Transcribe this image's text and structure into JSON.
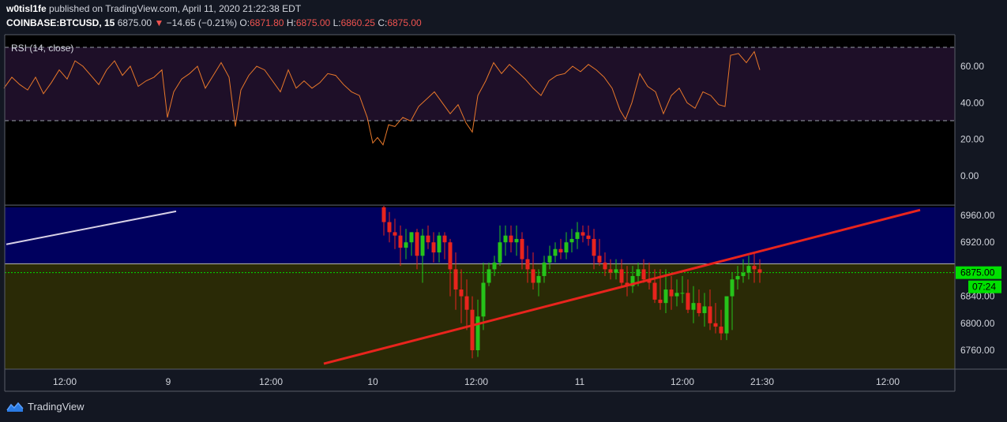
{
  "header": {
    "publisher": "w0tisl1fe",
    "published_text": "published on TradingView.com, April 11, 2020 21:22:38 EDT",
    "symbol": "COINBASE:BTCUSD, 15",
    "last": "6875.00",
    "change_arrow": "▼",
    "change": "−14.65 (−0.21%)",
    "o_label": "O:",
    "o_value": "6871.80",
    "h_label": "H:",
    "h_value": "6875.00",
    "l_label": "L:",
    "l_value": "6860.25",
    "c_label": "C:",
    "c_value": "6875.00"
  },
  "footer": {
    "brand": "TradingView",
    "logo_icon": "tradingview-logo-icon"
  },
  "colors": {
    "background": "#131722",
    "rsi_band": "#1e0f28",
    "rsi_line": "#e8782a",
    "upper_zone": "#00005e",
    "lower_zone": "#2a2a06",
    "up_candle": "#26c31a",
    "down_candle": "#e8241d",
    "trendline": "#e8241d",
    "white_line": "#d7d0e6",
    "price_line": "#00e000",
    "price_label_bg": "#00e000"
  },
  "chart_data": [
    {
      "type": "line",
      "title": "RSI (14, close)",
      "ylim": [
        -10,
        72
      ],
      "y_ticks": [
        "60.00",
        "40.00",
        "20.00",
        "0.00"
      ],
      "levels": [
        70,
        30
      ],
      "band": [
        30,
        70
      ],
      "x": [
        5,
        15,
        25,
        35,
        45,
        55,
        65,
        75,
        85,
        95,
        105,
        115,
        125,
        135,
        145,
        155,
        165,
        175,
        185,
        195,
        205,
        212,
        220,
        230,
        240,
        250,
        260,
        270,
        280,
        290,
        298,
        305,
        315,
        325,
        335,
        345,
        355,
        365,
        375,
        385,
        395,
        405,
        415,
        425,
        435,
        445,
        455,
        465,
        472,
        478,
        485,
        492,
        500,
        510,
        520,
        530,
        540,
        550,
        560,
        570,
        580,
        590,
        598,
        605,
        615,
        625,
        635,
        645,
        655,
        665,
        675,
        685,
        695,
        705,
        715,
        725,
        735,
        745,
        755,
        765,
        775,
        785,
        792,
        800,
        810,
        820,
        830,
        840,
        850,
        860,
        870,
        880,
        890,
        900,
        910,
        918,
        925,
        935,
        945,
        955,
        962
      ],
      "values": [
        48,
        54,
        50,
        47,
        54,
        45,
        51,
        58,
        53,
        63,
        60,
        55,
        50,
        58,
        63,
        55,
        60,
        49,
        52,
        54,
        58,
        32,
        46,
        53,
        56,
        60,
        48,
        55,
        62,
        54,
        27,
        47,
        55,
        60,
        58,
        52,
        46,
        58,
        48,
        52,
        48,
        51,
        56,
        55,
        50,
        46,
        44,
        32,
        18,
        21,
        17,
        28,
        27,
        32,
        30,
        38,
        42,
        46,
        40,
        34,
        39,
        29,
        24,
        44,
        52,
        62,
        56,
        61,
        57,
        53,
        48,
        44,
        52,
        55,
        56,
        60,
        57,
        61,
        58,
        54,
        48,
        36,
        31,
        40,
        56,
        49,
        46,
        34,
        44,
        48,
        40,
        37,
        46,
        44,
        39,
        38,
        66,
        67,
        62,
        68,
        58
      ],
      "color": "#e8782a"
    },
    {
      "type": "candlestick",
      "ylim": [
        6738,
        6972
      ],
      "y_ticks": [
        "6960.00",
        "6920.00",
        "6840.00",
        "6800.00",
        "6760.00"
      ],
      "x_ticks": [
        "12:00",
        "9",
        "12:00",
        "10",
        "12:00",
        "11",
        "12:00",
        "21:30",
        "12:00"
      ],
      "last_price_label": "6875.00",
      "countdown_label": "07:24",
      "last_price": 6875,
      "zones": [
        {
          "from": 6888,
          "to": 6972
        },
        {
          "from": 6738,
          "to": 6888
        }
      ],
      "candles": {
        "x": [
          486,
          493,
          500,
          507,
          514,
          521,
          528,
          535,
          542,
          549,
          556,
          563,
          570,
          577,
          584,
          591,
          598,
          605,
          612,
          619,
          626,
          633,
          640,
          647,
          654,
          661,
          668,
          675,
          682,
          689,
          696,
          703,
          710,
          717,
          724,
          731,
          738,
          745,
          752,
          759,
          766,
          773,
          780,
          787,
          794,
          801,
          808,
          815,
          822,
          829,
          836,
          843,
          850,
          857,
          864,
          871,
          878,
          885,
          892,
          899,
          906,
          913,
          920,
          927,
          934,
          941,
          948,
          955,
          962
        ],
        "open": [
          6972,
          6950,
          6935,
          6930,
          6912,
          6920,
          6935,
          6900,
          6930,
          6920,
          6905,
          6930,
          6920,
          6880,
          6850,
          6840,
          6820,
          6760,
          6810,
          6860,
          6880,
          6890,
          6920,
          6930,
          6920,
          6925,
          6895,
          6880,
          6860,
          6870,
          6890,
          6900,
          6910,
          6905,
          6920,
          6925,
          6935,
          6930,
          6925,
          6900,
          6890,
          6880,
          6875,
          6880,
          6860,
          6855,
          6870,
          6880,
          6865,
          6860,
          6835,
          6830,
          6850,
          6840,
          6845,
          6845,
          6820,
          6830,
          6815,
          6825,
          6800,
          6795,
          6785,
          6840,
          6865,
          6870,
          6875,
          6885,
          6880
        ],
        "high": [
          6975,
          6965,
          6955,
          6945,
          6940,
          6935,
          6940,
          6940,
          6945,
          6935,
          6935,
          6935,
          6925,
          6905,
          6880,
          6865,
          6840,
          6835,
          6890,
          6890,
          6900,
          6945,
          6945,
          6945,
          6945,
          6935,
          6915,
          6905,
          6880,
          6900,
          6915,
          6920,
          6925,
          6935,
          6940,
          6950,
          6945,
          6945,
          6940,
          6925,
          6905,
          6895,
          6895,
          6895,
          6885,
          6885,
          6890,
          6895,
          6890,
          6880,
          6880,
          6880,
          6870,
          6865,
          6870,
          6865,
          6855,
          6850,
          6845,
          6850,
          6830,
          6820,
          6825,
          6875,
          6885,
          6895,
          6900,
          6905,
          6895
        ],
        "low": [
          6930,
          6920,
          6910,
          6885,
          6895,
          6900,
          6880,
          6860,
          6910,
          6890,
          6890,
          6895,
          6840,
          6820,
          6800,
          6790,
          6748,
          6750,
          6790,
          6855,
          6870,
          6885,
          6900,
          6905,
          6900,
          6880,
          6860,
          6850,
          6840,
          6860,
          6880,
          6890,
          6895,
          6895,
          6905,
          6910,
          6920,
          6915,
          6880,
          6885,
          6870,
          6865,
          6865,
          6855,
          6840,
          6845,
          6855,
          6860,
          6850,
          6830,
          6820,
          6815,
          6820,
          6825,
          6830,
          6815,
          6800,
          6810,
          6795,
          6790,
          6785,
          6775,
          6775,
          6790,
          6850,
          6860,
          6865,
          6860,
          6860
        ],
        "close": [
          6950,
          6935,
          6930,
          6912,
          6920,
          6935,
          6900,
          6930,
          6920,
          6905,
          6930,
          6920,
          6880,
          6850,
          6840,
          6820,
          6760,
          6810,
          6860,
          6880,
          6890,
          6920,
          6930,
          6920,
          6925,
          6895,
          6880,
          6860,
          6870,
          6890,
          6900,
          6910,
          6905,
          6920,
          6925,
          6935,
          6930,
          6925,
          6900,
          6890,
          6880,
          6875,
          6880,
          6860,
          6855,
          6870,
          6880,
          6865,
          6860,
          6835,
          6830,
          6850,
          6840,
          6845,
          6845,
          6820,
          6830,
          6815,
          6825,
          6800,
          6795,
          6785,
          6840,
          6865,
          6870,
          6875,
          6885,
          6880,
          6875
        ]
      },
      "trendline_red": {
        "from": {
          "x": 410,
          "y": 6740
        },
        "to": {
          "x": 1165,
          "y": 6968
        }
      },
      "trendline_white": {
        "from": {
          "x": 8,
          "y": 6917
        },
        "to": {
          "x": 223,
          "y": 6966
        }
      }
    }
  ]
}
